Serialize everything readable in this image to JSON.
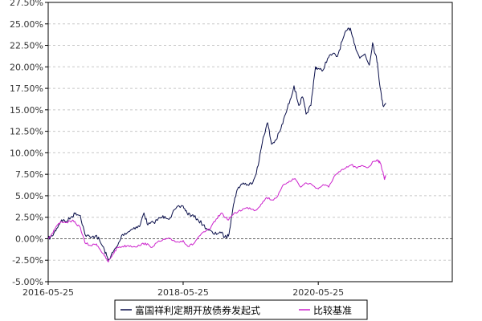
{
  "chart_data": {
    "type": "line",
    "title": "",
    "xlabel": "",
    "ylabel": "",
    "x_tick_labels": [
      "2016-05-25",
      "2018-05-25",
      "2020-05-25"
    ],
    "y_tick_labels": [
      "-5.00%",
      "-2.50%",
      "0.00%",
      "2.50%",
      "5.00%",
      "7.50%",
      "10.00%",
      "12.50%",
      "15.00%",
      "17.50%",
      "20.00%",
      "22.50%",
      "25.00%",
      "27.50%"
    ],
    "ylim": [
      -5.0,
      27.5
    ],
    "xlim": [
      "2016-05-25",
      "2022-05-20"
    ],
    "y_unit": "%",
    "grid": "horizontal dashed",
    "zero_line": "dashed",
    "legend_position": "bottom",
    "series": [
      {
        "name": "富国祥利定期开放债券发起式",
        "color": "#0a0f4a",
        "points": [
          [
            "2016-05-25",
            0.0
          ],
          [
            "2016-06-15",
            0.3
          ],
          [
            "2016-07-10",
            1.2
          ],
          [
            "2016-08-05",
            2.2
          ],
          [
            "2016-09-01",
            2.0
          ],
          [
            "2016-10-01",
            2.6
          ],
          [
            "2016-10-20",
            3.0
          ],
          [
            "2016-11-15",
            2.7
          ],
          [
            "2016-12-10",
            0.5
          ],
          [
            "2017-01-10",
            0.1
          ],
          [
            "2017-02-10",
            0.4
          ],
          [
            "2017-03-01",
            -0.3
          ],
          [
            "2017-03-25",
            -1.3
          ],
          [
            "2017-04-15",
            -2.5
          ],
          [
            "2017-05-10",
            -1.6
          ],
          [
            "2017-06-05",
            -0.8
          ],
          [
            "2017-07-01",
            0.5
          ],
          [
            "2017-08-01",
            0.8
          ],
          [
            "2017-09-01",
            1.3
          ],
          [
            "2017-10-01",
            1.4
          ],
          [
            "2017-10-25",
            3.0
          ],
          [
            "2017-11-15",
            1.6
          ],
          [
            "2017-12-15",
            1.9
          ],
          [
            "2018-01-20",
            2.4
          ],
          [
            "2018-02-15",
            2.6
          ],
          [
            "2018-03-15",
            2.4
          ],
          [
            "2018-04-15",
            3.5
          ],
          [
            "2018-05-25",
            3.8
          ],
          [
            "2018-06-15",
            3.0
          ],
          [
            "2018-07-10",
            2.7
          ],
          [
            "2018-08-10",
            2.3
          ],
          [
            "2018-09-10",
            1.6
          ],
          [
            "2018-10-10",
            1.0
          ],
          [
            "2018-11-10",
            0.5
          ],
          [
            "2018-12-10",
            0.8
          ],
          [
            "2019-01-05",
            0.2
          ],
          [
            "2019-01-25",
            0.3
          ],
          [
            "2019-02-10",
            2.5
          ],
          [
            "2019-03-01",
            4.8
          ],
          [
            "2019-03-20",
            6.0
          ],
          [
            "2019-04-15",
            6.5
          ],
          [
            "2019-05-15",
            6.2
          ],
          [
            "2019-06-10",
            6.8
          ],
          [
            "2019-07-05",
            8.5
          ],
          [
            "2019-08-01",
            11.8
          ],
          [
            "2019-08-25",
            13.5
          ],
          [
            "2019-09-15",
            11.0
          ],
          [
            "2019-10-10",
            11.5
          ],
          [
            "2019-11-05",
            12.8
          ],
          [
            "2019-11-30",
            14.5
          ],
          [
            "2019-12-25",
            16.2
          ],
          [
            "2020-01-15",
            17.8
          ],
          [
            "2020-02-10",
            15.5
          ],
          [
            "2020-03-01",
            16.5
          ],
          [
            "2020-03-20",
            14.5
          ],
          [
            "2020-04-15",
            15.5
          ],
          [
            "2020-05-10",
            20.0
          ],
          [
            "2020-05-25",
            19.8
          ],
          [
            "2020-06-15",
            19.5
          ],
          [
            "2020-07-15",
            21.0
          ],
          [
            "2020-08-10",
            21.5
          ],
          [
            "2020-09-05",
            21.2
          ],
          [
            "2020-10-01",
            23.0
          ],
          [
            "2020-10-25",
            24.2
          ],
          [
            "2020-11-15",
            24.5
          ],
          [
            "2020-12-10",
            22.5
          ],
          [
            "2021-01-05",
            21.0
          ],
          [
            "2021-02-01",
            21.5
          ],
          [
            "2021-02-25",
            20.2
          ],
          [
            "2021-03-15",
            22.8
          ],
          [
            "2021-03-30",
            21.5
          ],
          [
            "2021-04-10",
            20.5
          ],
          [
            "2021-04-25",
            17.5
          ],
          [
            "2021-05-10",
            15.5
          ],
          [
            "2021-05-25",
            15.8
          ]
        ]
      },
      {
        "name": "比较基准",
        "color": "#cc22cc",
        "points": [
          [
            "2016-05-25",
            0.0
          ],
          [
            "2016-06-15",
            0.6
          ],
          [
            "2016-07-10",
            1.5
          ],
          [
            "2016-08-05",
            2.0
          ],
          [
            "2016-09-01",
            1.9
          ],
          [
            "2016-10-01",
            2.1
          ],
          [
            "2016-10-20",
            1.8
          ],
          [
            "2016-11-15",
            1.3
          ],
          [
            "2016-12-10",
            -0.5
          ],
          [
            "2017-01-10",
            -0.8
          ],
          [
            "2017-02-10",
            -0.6
          ],
          [
            "2017-03-01",
            -1.2
          ],
          [
            "2017-03-25",
            -2.0
          ],
          [
            "2017-04-15",
            -2.7
          ],
          [
            "2017-05-10",
            -1.8
          ],
          [
            "2017-06-05",
            -1.0
          ],
          [
            "2017-07-01",
            -0.9
          ],
          [
            "2017-08-01",
            -0.8
          ],
          [
            "2017-09-01",
            -0.9
          ],
          [
            "2017-10-01",
            -0.8
          ],
          [
            "2017-11-01",
            -0.5
          ],
          [
            "2017-12-01",
            -1.0
          ],
          [
            "2018-01-01",
            -0.5
          ],
          [
            "2018-02-01",
            -0.2
          ],
          [
            "2018-03-01",
            0.0
          ],
          [
            "2018-04-01",
            -0.2
          ],
          [
            "2018-05-01",
            -0.4
          ],
          [
            "2018-05-25",
            -0.2
          ],
          [
            "2018-06-20",
            -0.9
          ],
          [
            "2018-07-20",
            -0.6
          ],
          [
            "2018-08-20",
            0.3
          ],
          [
            "2018-09-20",
            0.8
          ],
          [
            "2018-10-20",
            1.2
          ],
          [
            "2018-11-20",
            2.3
          ],
          [
            "2018-12-20",
            3.0
          ],
          [
            "2019-01-20",
            2.2
          ],
          [
            "2019-02-20",
            2.8
          ],
          [
            "2019-03-20",
            3.2
          ],
          [
            "2019-04-20",
            3.5
          ],
          [
            "2019-05-20",
            3.6
          ],
          [
            "2019-06-20",
            3.3
          ],
          [
            "2019-07-20",
            4.0
          ],
          [
            "2019-08-20",
            4.8
          ],
          [
            "2019-09-20",
            4.5
          ],
          [
            "2019-10-20",
            5.0
          ],
          [
            "2019-11-20",
            6.3
          ],
          [
            "2019-12-20",
            6.7
          ],
          [
            "2020-01-20",
            7.0
          ],
          [
            "2020-02-20",
            6.0
          ],
          [
            "2020-03-20",
            6.5
          ],
          [
            "2020-04-20",
            6.3
          ],
          [
            "2020-05-25",
            5.8
          ],
          [
            "2020-06-20",
            6.3
          ],
          [
            "2020-07-20",
            6.0
          ],
          [
            "2020-08-20",
            7.3
          ],
          [
            "2020-09-20",
            7.8
          ],
          [
            "2020-10-20",
            8.2
          ],
          [
            "2020-11-20",
            8.6
          ],
          [
            "2020-12-20",
            8.2
          ],
          [
            "2021-01-20",
            8.5
          ],
          [
            "2021-02-20",
            8.3
          ],
          [
            "2021-03-20",
            9.0
          ],
          [
            "2021-04-10",
            9.2
          ],
          [
            "2021-04-25",
            8.8
          ],
          [
            "2021-05-10",
            7.8
          ],
          [
            "2021-05-18",
            6.9
          ],
          [
            "2021-05-25",
            7.4
          ]
        ]
      }
    ]
  }
}
